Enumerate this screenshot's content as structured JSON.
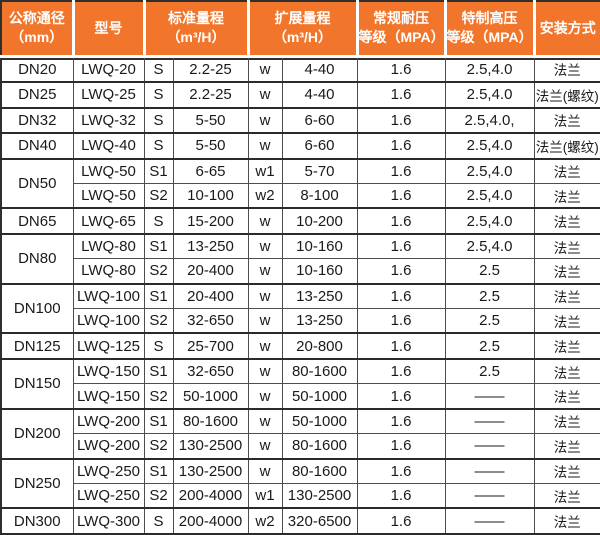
{
  "colors": {
    "header_bg": "#f1762b",
    "header_text": "#ffffff",
    "body_text": "#1a1a1a",
    "grid_line": "#4d4d4d",
    "group_line": "#2b2b2b",
    "row_bg": "#ffffff"
  },
  "table": {
    "headers": [
      {
        "lines": [
          "公称通径",
          "（mm）"
        ],
        "colspan": 1
      },
      {
        "lines": [
          "型号"
        ],
        "colspan": 1
      },
      {
        "lines": [
          "标准量程",
          "（m³/H）"
        ],
        "colspan": 2
      },
      {
        "lines": [
          "扩展量程",
          "（m³/H）"
        ],
        "colspan": 2
      },
      {
        "lines": [
          "常规耐压",
          "等级（MPA）"
        ],
        "colspan": 1
      },
      {
        "lines": [
          "特制高压",
          "等级（MPA）"
        ],
        "colspan": 1
      },
      {
        "lines": [
          "安装方式"
        ],
        "colspan": 1
      }
    ],
    "groups": [
      {
        "dn": "DN20",
        "rows": [
          {
            "model": "LWQ-20",
            "std_code": "S",
            "std_range": "2.2-25",
            "ext_code": "w",
            "ext_range": "4-40",
            "regular_mpa": "1.6",
            "high_mpa": "2.5,4.0",
            "install": "法兰"
          }
        ]
      },
      {
        "dn": "DN25",
        "rows": [
          {
            "model": "LWQ-25",
            "std_code": "S",
            "std_range": "2.2-25",
            "ext_code": "w",
            "ext_range": "4-40",
            "regular_mpa": "1.6",
            "high_mpa": "2.5,4.0",
            "install": "法兰(螺纹)"
          }
        ]
      },
      {
        "dn": "DN32",
        "rows": [
          {
            "model": "LWQ-32",
            "std_code": "S",
            "std_range": "5-50",
            "ext_code": "w",
            "ext_range": "6-60",
            "regular_mpa": "1.6",
            "high_mpa": "2.5,4.0,",
            "install": "法兰"
          }
        ]
      },
      {
        "dn": "DN40",
        "rows": [
          {
            "model": "LWQ-40",
            "std_code": "S",
            "std_range": "5-50",
            "ext_code": "w",
            "ext_range": "6-60",
            "regular_mpa": "1.6",
            "high_mpa": "2.5,4.0",
            "install": "法兰(螺纹)"
          }
        ]
      },
      {
        "dn": "DN50",
        "rows": [
          {
            "model": "LWQ-50",
            "std_code": "S1",
            "std_range": "6-65",
            "ext_code": "w1",
            "ext_range": "5-70",
            "regular_mpa": "1.6",
            "high_mpa": "2.5,4.0",
            "install": "法兰"
          },
          {
            "model": "LWQ-50",
            "std_code": "S2",
            "std_range": "10-100",
            "ext_code": "w2",
            "ext_range": "8-100",
            "regular_mpa": "1.6",
            "high_mpa": "2.5,4.0",
            "install": "法兰"
          }
        ]
      },
      {
        "dn": "DN65",
        "rows": [
          {
            "model": "LWQ-65",
            "std_code": "S",
            "std_range": "15-200",
            "ext_code": "w",
            "ext_range": "10-200",
            "regular_mpa": "1.6",
            "high_mpa": "2.5,4.0",
            "install": "法兰"
          }
        ]
      },
      {
        "dn": "DN80",
        "rows": [
          {
            "model": "LWQ-80",
            "std_code": "S1",
            "std_range": "13-250",
            "ext_code": "w",
            "ext_range": "10-160",
            "regular_mpa": "1.6",
            "high_mpa": "2.5,4.0",
            "install": "法兰"
          },
          {
            "model": "LWQ-80",
            "std_code": "S2",
            "std_range": "20-400",
            "ext_code": "w",
            "ext_range": "10-160",
            "regular_mpa": "1.6",
            "high_mpa": "2.5",
            "install": "法兰"
          }
        ]
      },
      {
        "dn": "DN100",
        "rows": [
          {
            "model": "LWQ-100",
            "std_code": "S1",
            "std_range": "20-400",
            "ext_code": "w",
            "ext_range": "13-250",
            "regular_mpa": "1.6",
            "high_mpa": "2.5",
            "install": "法兰"
          },
          {
            "model": "LWQ-100",
            "std_code": "S2",
            "std_range": "32-650",
            "ext_code": "w",
            "ext_range": "13-250",
            "regular_mpa": "1.6",
            "high_mpa": "2.5",
            "install": "法兰"
          }
        ]
      },
      {
        "dn": "DN125",
        "rows": [
          {
            "model": "LWQ-125",
            "std_code": "S",
            "std_range": "25-700",
            "ext_code": "w",
            "ext_range": "20-800",
            "regular_mpa": "1.6",
            "high_mpa": "2.5",
            "install": "法兰"
          }
        ]
      },
      {
        "dn": "DN150",
        "rows": [
          {
            "model": "LWQ-150",
            "std_code": "S1",
            "std_range": "32-650",
            "ext_code": "w",
            "ext_range": "80-1600",
            "regular_mpa": "1.6",
            "high_mpa": "2.5",
            "install": "法兰"
          },
          {
            "model": "LWQ-150",
            "std_code": "S2",
            "std_range": "50-1000",
            "ext_code": "w",
            "ext_range": "50-1000",
            "regular_mpa": "1.6",
            "high_mpa": "——",
            "install": "法兰"
          }
        ]
      },
      {
        "dn": "DN200",
        "rows": [
          {
            "model": "LWQ-200",
            "std_code": "S1",
            "std_range": "80-1600",
            "ext_code": "w",
            "ext_range": "50-1000",
            "regular_mpa": "1.6",
            "high_mpa": "——",
            "install": "法兰"
          },
          {
            "model": "LWQ-200",
            "std_code": "S2",
            "std_range": "130-2500",
            "ext_code": "w",
            "ext_range": "80-1600",
            "regular_mpa": "1.6",
            "high_mpa": "——",
            "install": "法兰"
          }
        ]
      },
      {
        "dn": "DN250",
        "rows": [
          {
            "model": "LWQ-250",
            "std_code": "S1",
            "std_range": "130-2500",
            "ext_code": "w",
            "ext_range": "80-1600",
            "regular_mpa": "1.6",
            "high_mpa": "——",
            "install": "法兰"
          },
          {
            "model": "LWQ-250",
            "std_code": "S2",
            "std_range": "200-4000",
            "ext_code": "w1",
            "ext_range": "130-2500",
            "regular_mpa": "1.6",
            "high_mpa": "——",
            "install": "法兰"
          }
        ]
      },
      {
        "dn": "DN300",
        "rows": [
          {
            "model": "LWQ-300",
            "std_code": "S",
            "std_range": "200-4000",
            "ext_code": "w2",
            "ext_range": "320-6500",
            "regular_mpa": "1.6",
            "high_mpa": "——",
            "install": "法兰"
          }
        ]
      }
    ]
  }
}
